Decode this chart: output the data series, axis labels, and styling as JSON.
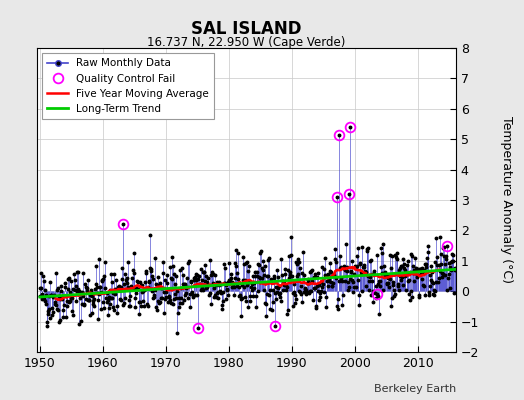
{
  "title": "SAL ISLAND",
  "subtitle": "16.737 N, 22.950 W (Cape Verde)",
  "ylabel": "Temperature Anomaly (°C)",
  "xlabel_bottom": "Berkeley Earth",
  "ylim": [
    -2,
    8
  ],
  "yticks": [
    -2,
    -1,
    0,
    1,
    2,
    3,
    4,
    5,
    6,
    7,
    8
  ],
  "xlim": [
    1949.5,
    2016
  ],
  "xticks": [
    1950,
    1960,
    1970,
    1980,
    1990,
    2000,
    2010
  ],
  "bg_color": "#e8e8e8",
  "plot_bg_color": "#ffffff",
  "raw_line_color": "#4444cc",
  "raw_marker_color": "#000000",
  "qc_fail_color": "#ff00ff",
  "moving_avg_color": "#ff0000",
  "trend_color": "#00cc00",
  "legend_loc": "upper left"
}
